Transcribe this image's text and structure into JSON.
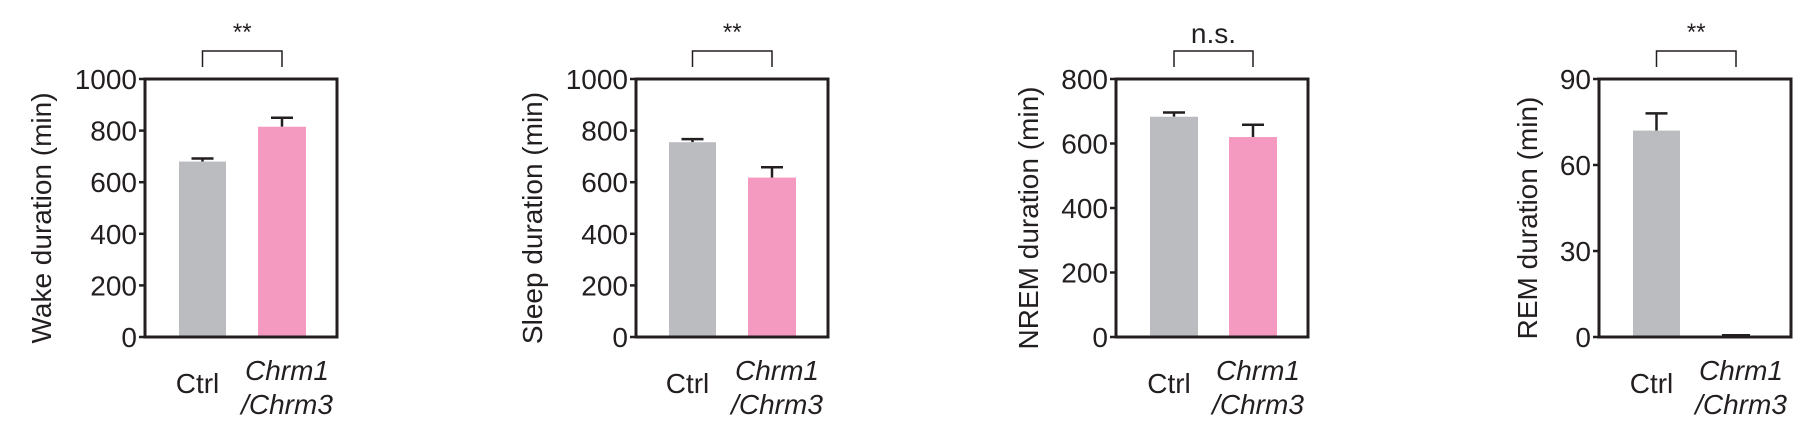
{
  "colors": {
    "ctrl": "#bbbcc0",
    "mutant": "#f49ac1",
    "axis": "#231f20"
  },
  "chart_data": [
    {
      "type": "bar",
      "title": "",
      "xlabel": "",
      "ylabel": "Wake duration (min)",
      "categories": [
        "Ctrl",
        "Chrm1/Chrm3"
      ],
      "category_labels": [
        {
          "line1": "Ctrl",
          "italic": false
        },
        {
          "line1": "Chrm1",
          "line2": "/Chrm3",
          "italic": true
        }
      ],
      "values": [
        680,
        815
      ],
      "error": [
        12,
        35
      ],
      "ylim": [
        0,
        1000
      ],
      "yticks": [
        0,
        200,
        400,
        600,
        800,
        1000
      ],
      "significance": "**",
      "grid": false
    },
    {
      "type": "bar",
      "title": "",
      "xlabel": "",
      "ylabel": "Sleep duration (min)",
      "categories": [
        "Ctrl",
        "Chrm1/Chrm3"
      ],
      "category_labels": [
        {
          "line1": "Ctrl",
          "italic": false
        },
        {
          "line1": "Chrm1",
          "line2": "/Chrm3",
          "italic": true
        }
      ],
      "values": [
        755,
        618
      ],
      "error": [
        12,
        40
      ],
      "ylim": [
        0,
        1000
      ],
      "yticks": [
        0,
        200,
        400,
        600,
        800,
        1000
      ],
      "significance": "**",
      "grid": false
    },
    {
      "type": "bar",
      "title": "",
      "xlabel": "",
      "ylabel": "NREM duration (min)",
      "categories": [
        "Ctrl",
        "Chrm1/Chrm3"
      ],
      "category_labels": [
        {
          "line1": "Ctrl",
          "italic": false
        },
        {
          "line1": "Chrm1",
          "line2": "/Chrm3",
          "italic": true
        }
      ],
      "values": [
        683,
        620
      ],
      "error": [
        13,
        38
      ],
      "ylim": [
        0,
        800
      ],
      "yticks": [
        0,
        200,
        400,
        600,
        800
      ],
      "significance": "n.s.",
      "grid": false
    },
    {
      "type": "bar",
      "title": "",
      "xlabel": "",
      "ylabel": "REM duration (min)",
      "categories": [
        "Ctrl",
        "Chrm1/Chrm3"
      ],
      "category_labels": [
        {
          "line1": "Ctrl",
          "italic": false
        },
        {
          "line1": "Chrm1",
          "line2": "/Chrm3",
          "italic": true
        }
      ],
      "values": [
        72,
        0.5
      ],
      "error": [
        6,
        0
      ],
      "ylim": [
        0,
        90
      ],
      "yticks": [
        0,
        30,
        60,
        90
      ],
      "significance": "**",
      "grid": false
    }
  ]
}
